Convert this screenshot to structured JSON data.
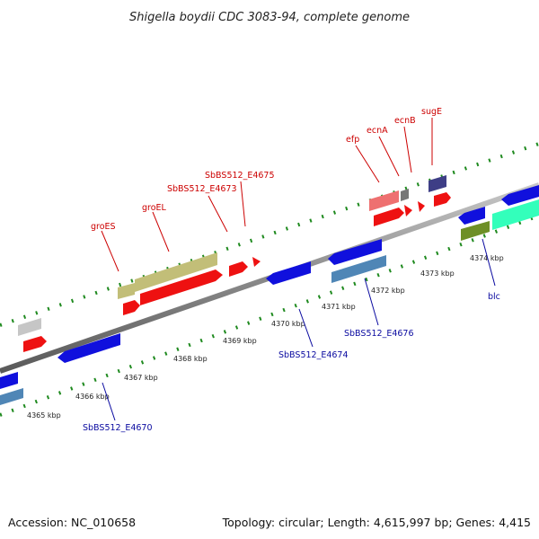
{
  "title": "Shigella boydii CDC 3083-94, complete genome",
  "footer": {
    "accession": "Accession: NC_010658",
    "summary": "Topology: circular; Length: 4,615,997 bp; Genes: 4,415"
  },
  "ruler": {
    "unit": "kbp",
    "ticks": [
      "4365 kbp",
      "4366 kbp",
      "4367 kbp",
      "4368 kbp",
      "4369 kbp",
      "4370 kbp",
      "4371 kbp",
      "4372 kbp",
      "4373 kbp",
      "4374 kbp"
    ]
  },
  "labels_top": [
    "groES",
    "groEL",
    "SbBS512_E4673",
    "SbBS512_E4675",
    "efp",
    "ecnA",
    "ecnB",
    "sugE"
  ],
  "labels_bottom": [
    "SbBS512_E4670",
    "SbBS512_E4674",
    "SbBS512_E4676",
    "blc"
  ],
  "colors": {
    "backbone": "#888888",
    "dashed_track": "#1f8a1f",
    "forward_gene": "#ee1111",
    "reverse_gene": "#1010dd",
    "olive": "#c2be78",
    "steelblue": "#4f86b6",
    "aqua": "#33ffbb",
    "darkolive": "#6e8f26",
    "pink": "#ee7070",
    "navy": "#3e3e86",
    "silver": "#c6c6c6",
    "gray": "#777777"
  }
}
